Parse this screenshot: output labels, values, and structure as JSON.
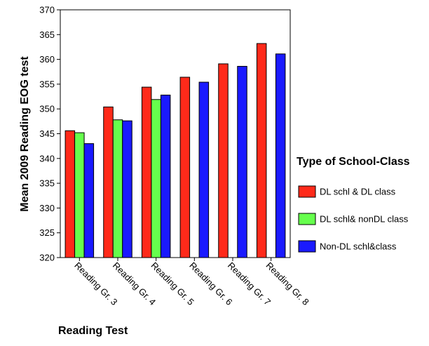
{
  "chart_data": {
    "type": "bar",
    "title": "",
    "xlabel": "Reading Test",
    "ylabel": "Mean 2009 Reading EOG test",
    "ylim": [
      320,
      370
    ],
    "yticks": [
      320,
      325,
      330,
      335,
      340,
      345,
      350,
      355,
      360,
      365,
      370
    ],
    "grid": false,
    "legend_title": "Type of School-Class",
    "legend_position": "right",
    "categories": [
      "Reading Gr. 3",
      "Reading Gr. 4",
      "Reading Gr. 5",
      "Reading Gr. 6",
      "Reading Gr. 7",
      "Reading Gr. 8"
    ],
    "series": [
      {
        "name": "DL schl & DL class",
        "color": "#ff2a1a",
        "values": [
          345.6,
          350.4,
          354.4,
          356.4,
          359.1,
          363.2
        ]
      },
      {
        "name": "DL schl& nonDL class",
        "color": "#66ff4d",
        "values": [
          345.2,
          347.8,
          351.9,
          null,
          null,
          null
        ]
      },
      {
        "name": "Non-DL schl&class",
        "color": "#1a1aff",
        "values": [
          343.0,
          347.6,
          352.8,
          355.4,
          358.6,
          361.1
        ]
      }
    ]
  }
}
